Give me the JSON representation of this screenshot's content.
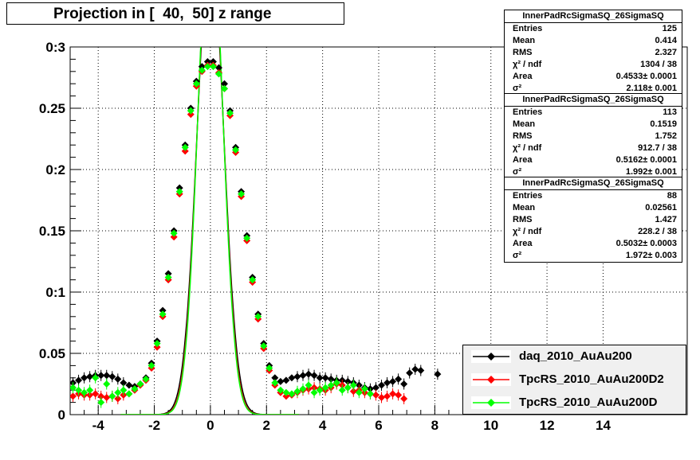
{
  "title": "Projection in [  40,  50] z range",
  "stats_boxes": [
    {
      "header": "InnerPadRcSigmaSQ_26SigmaSQ",
      "rows": [
        [
          "Entries",
          "125"
        ],
        [
          "Mean",
          "0.414"
        ],
        [
          "RMS",
          "2.327"
        ],
        [
          "χ² / ndf",
          "1304 / 38"
        ],
        [
          "Area",
          "0.4533± 0.0001"
        ],
        [
          "σ²",
          "2.118± 0.001"
        ]
      ]
    },
    {
      "header": "InnerPadRcSigmaSQ_26SigmaSQ",
      "rows": [
        [
          "Entries",
          "113"
        ],
        [
          "Mean",
          "0.1519"
        ],
        [
          "RMS",
          "1.752"
        ],
        [
          "χ² / ndf",
          "912.7 / 38"
        ],
        [
          "Area",
          "0.5162± 0.0001"
        ],
        [
          "σ²",
          "1.992± 0.001"
        ]
      ]
    },
    {
      "header": "InnerPadRcSigmaSQ_26SigmaSQ",
      "rows": [
        [
          "Entries",
          "88"
        ],
        [
          "Mean",
          "0.02561"
        ],
        [
          "RMS",
          "1.427"
        ],
        [
          "χ² / ndf",
          "228.2 / 38"
        ],
        [
          "Area",
          "0.5032± 0.0003"
        ],
        [
          "σ²",
          "1.972± 0.003"
        ]
      ]
    }
  ],
  "legend": [
    {
      "label": "daq_2010_AuAu200",
      "color": "#000000"
    },
    {
      "label": "TpcRS_2010_AuAu200D2",
      "color": "#ff0000"
    },
    {
      "label": "TpcRS_2010_AuAu200D",
      "color": "#00ff00"
    }
  ],
  "chart_data": {
    "type": "scatter",
    "title": "Projection in [  40,  50] z range",
    "xlim": [
      -5,
      17
    ],
    "ylim": [
      0,
      0.3
    ],
    "x_ticks": [
      -4,
      -2,
      0,
      2,
      4,
      6,
      8,
      10,
      12,
      14
    ],
    "y_ticks": [
      0,
      0.05,
      0.1,
      0.15,
      0.2,
      0.25,
      0.3
    ],
    "y_tick_labels": [
      "0",
      "0.05",
      "0:1",
      "0.15",
      "0:2",
      "0.25",
      "0:3"
    ],
    "grid": true,
    "series": [
      {
        "name": "daq_2010_AuAu200",
        "color": "#000000",
        "x": [
          -4.9,
          -4.7,
          -4.5,
          -4.3,
          -4.1,
          -3.9,
          -3.7,
          -3.5,
          -3.3,
          -3.1,
          -2.9,
          -2.7,
          -2.5,
          -2.3,
          -2.1,
          -1.9,
          -1.7,
          -1.5,
          -1.3,
          -1.1,
          -0.9,
          -0.7,
          -0.5,
          -0.3,
          -0.1,
          0.1,
          0.3,
          0.5,
          0.7,
          0.9,
          1.1,
          1.3,
          1.5,
          1.7,
          1.9,
          2.1,
          2.3,
          2.5,
          2.7,
          2.9,
          3.1,
          3.3,
          3.5,
          3.7,
          3.9,
          4.1,
          4.3,
          4.5,
          4.7,
          4.9,
          5.1,
          5.3,
          5.5,
          5.7,
          5.9,
          6.1,
          6.3,
          6.5,
          6.7,
          6.9,
          7.1,
          7.3,
          7.5,
          8.1
        ],
        "y": [
          0.026,
          0.028,
          0.03,
          0.031,
          0.032,
          0.032,
          0.032,
          0.031,
          0.029,
          0.026,
          0.024,
          0.023,
          0.025,
          0.03,
          0.042,
          0.06,
          0.085,
          0.115,
          0.15,
          0.185,
          0.22,
          0.25,
          0.272,
          0.284,
          0.288,
          0.288,
          0.283,
          0.27,
          0.248,
          0.218,
          0.182,
          0.146,
          0.112,
          0.082,
          0.058,
          0.04,
          0.03,
          0.027,
          0.028,
          0.03,
          0.031,
          0.032,
          0.033,
          0.032,
          0.03,
          0.03,
          0.029,
          0.028,
          0.028,
          0.027,
          0.026,
          0.024,
          0.022,
          0.021,
          0.022,
          0.024,
          0.026,
          0.027,
          0.029,
          0.025,
          0.034,
          0.037,
          0.036,
          0.033
        ]
      },
      {
        "name": "TpcRS_2010_AuAu200D2",
        "color": "#ff0000",
        "x": [
          -4.9,
          -4.7,
          -4.5,
          -4.3,
          -4.1,
          -3.9,
          -3.7,
          -3.5,
          -3.3,
          -3.1,
          -2.9,
          -2.7,
          -2.5,
          -2.3,
          -2.1,
          -1.9,
          -1.7,
          -1.5,
          -1.3,
          -1.1,
          -0.9,
          -0.7,
          -0.5,
          -0.3,
          -0.1,
          0.1,
          0.3,
          0.5,
          0.7,
          0.9,
          1.1,
          1.3,
          1.5,
          1.7,
          1.9,
          2.1,
          2.3,
          2.5,
          2.7,
          2.9,
          3.1,
          3.3,
          3.5,
          3.7,
          3.9,
          4.1,
          4.3,
          4.5,
          4.7,
          4.9,
          5.1,
          5.3,
          5.5,
          5.7,
          5.9,
          6.1,
          6.3,
          6.5,
          6.7,
          6.9
        ],
        "y": [
          0.015,
          0.017,
          0.016,
          0.016,
          0.017,
          0.015,
          0.014,
          0.015,
          0.013,
          0.016,
          0.017,
          0.02,
          0.024,
          0.028,
          0.038,
          0.055,
          0.08,
          0.11,
          0.145,
          0.18,
          0.215,
          0.245,
          0.268,
          0.28,
          0.285,
          0.285,
          0.279,
          0.266,
          0.244,
          0.214,
          0.178,
          0.142,
          0.108,
          0.078,
          0.054,
          0.036,
          0.024,
          0.018,
          0.015,
          0.016,
          0.018,
          0.02,
          0.021,
          0.022,
          0.021,
          0.02,
          0.022,
          0.025,
          0.024,
          0.022,
          0.019,
          0.02,
          0.018,
          0.017,
          0.016,
          0.014,
          0.015,
          0.017,
          0.016,
          0.013
        ]
      },
      {
        "name": "TpcRS_2010_AuAu200D",
        "color": "#00ff00",
        "x": [
          -4.9,
          -4.7,
          -4.5,
          -4.3,
          -4.1,
          -3.9,
          -3.7,
          -3.5,
          -3.3,
          -3.1,
          -2.9,
          -2.7,
          -2.5,
          -2.3,
          -2.1,
          -1.9,
          -1.7,
          -1.5,
          -1.3,
          -1.1,
          -0.9,
          -0.7,
          -0.5,
          -0.3,
          -0.1,
          0.1,
          0.3,
          0.5,
          0.7,
          0.9,
          1.1,
          1.3,
          1.5,
          1.7,
          1.9,
          2.1,
          2.3,
          2.5,
          2.7,
          2.9,
          3.1,
          3.3,
          3.5,
          3.7,
          3.9,
          4.1,
          4.3,
          4.5,
          4.7,
          4.9,
          5.1,
          5.3,
          5.5,
          5.7
        ],
        "y": [
          0.022,
          0.02,
          0.018,
          0.02,
          0.03,
          0.01,
          0.025,
          0.015,
          0.018,
          0.02,
          0.017,
          0.021,
          0.025,
          0.029,
          0.04,
          0.058,
          0.082,
          0.112,
          0.148,
          0.182,
          0.218,
          0.248,
          0.27,
          0.281,
          0.284,
          0.284,
          0.278,
          0.266,
          0.246,
          0.216,
          0.18,
          0.144,
          0.11,
          0.08,
          0.056,
          0.038,
          0.026,
          0.02,
          0.018,
          0.017,
          0.019,
          0.021,
          0.024,
          0.018,
          0.02,
          0.022,
          0.024,
          0.026,
          0.02,
          0.022,
          0.024,
          0.018,
          0.021,
          0.017
        ]
      }
    ],
    "fits": [
      {
        "color": "#000000",
        "sigma": 0.47
      },
      {
        "color": "#ff0000",
        "sigma": 0.45
      },
      {
        "color": "#00ff00",
        "sigma": 0.44
      }
    ]
  }
}
